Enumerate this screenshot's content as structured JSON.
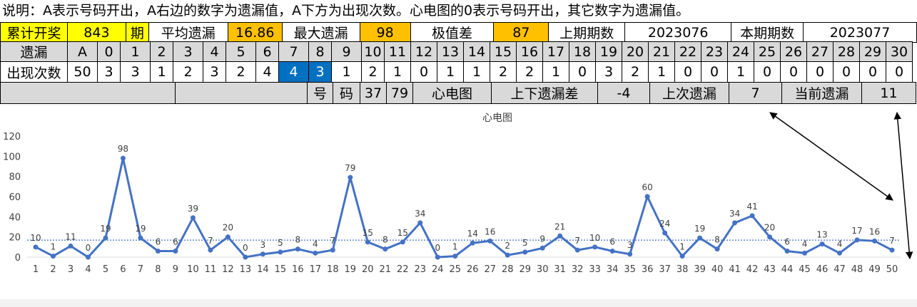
{
  "note": "说明：A表示号码开出，A右边的数字为遗漏值，A下方为出现次数。心电图的0表示号码开出，其它数字为遗漏值。",
  "summary": {
    "total_label": "累计开奖",
    "total_value": "843",
    "period_label": "期",
    "avg_label": "平均遗漏",
    "avg_value": "16.86",
    "max_label": "最大遗漏",
    "max_value": "98",
    "range_label": "极值差",
    "range_value": "87",
    "prev_label": "上期期数",
    "prev_value": "2023076",
    "cur_label": "本期期数",
    "cur_value": "2023077"
  },
  "header_row": {
    "label": "遗漏",
    "cols": [
      "A",
      "0",
      "1",
      "2",
      "3",
      "4",
      "5",
      "6",
      "7",
      "8",
      "9",
      "10",
      "11",
      "12",
      "13",
      "14",
      "15",
      "16",
      "17",
      "18",
      "19",
      "20",
      "21",
      "22",
      "23",
      "24",
      "25",
      "26",
      "27",
      "28",
      "29",
      "30"
    ]
  },
  "count_row": {
    "label": "出现次数",
    "values": [
      "50",
      "3",
      "3",
      "1",
      "2",
      "3",
      "2",
      "4",
      "4",
      "3",
      "1",
      "2",
      "1",
      "0",
      "1",
      "1",
      "2",
      "2",
      "1",
      "0",
      "3",
      "2",
      "1",
      "0",
      "0",
      "1",
      "0",
      "0",
      "0",
      "0",
      "0",
      "0"
    ]
  },
  "info_row": {
    "hao": "号",
    "ma": "码",
    "num1": "37",
    "num2": "79",
    "ecg_label": "心电图",
    "diff_label": "上下遗漏差",
    "diff_value": "-4",
    "last_label": "上次遗漏",
    "last_value": "7",
    "cur_label": "当前遗漏",
    "cur_value": "11"
  },
  "colors": {
    "yellow": "#ffff00",
    "orange": "#ffc000",
    "gray": "#d9d9d9",
    "blue": "#0070c0",
    "line": "#4472c4"
  },
  "chart_data": {
    "type": "line",
    "title": "心电图",
    "categories": [
      "1",
      "2",
      "3",
      "4",
      "5",
      "6",
      "7",
      "8",
      "9",
      "10",
      "11",
      "12",
      "13",
      "14",
      "15",
      "16",
      "17",
      "18",
      "19",
      "20",
      "21",
      "22",
      "23",
      "24",
      "25",
      "26",
      "27",
      "28",
      "29",
      "30",
      "31",
      "32",
      "33",
      "34",
      "35",
      "36",
      "37",
      "38",
      "39",
      "40",
      "41",
      "42",
      "43",
      "44",
      "45",
      "46",
      "47",
      "48",
      "49",
      "50"
    ],
    "series": [
      {
        "values": [
          10,
          1,
          11,
          0,
          19,
          98,
          19,
          6,
          6,
          39,
          7,
          20,
          0,
          3,
          5,
          8,
          4,
          7,
          79,
          15,
          8,
          15,
          34,
          0,
          1,
          14,
          16,
          2,
          5,
          9,
          21,
          7,
          10,
          6,
          3,
          60,
          24,
          1,
          19,
          8,
          34,
          41,
          20,
          6,
          4,
          13,
          4,
          17,
          16,
          7
        ]
      }
    ],
    "average": 16.86,
    "ylim": [
      0,
      120
    ],
    "yticks": [
      "0",
      "20",
      "40",
      "60",
      "80",
      "100",
      "120"
    ],
    "grid": false,
    "legend": "none"
  }
}
